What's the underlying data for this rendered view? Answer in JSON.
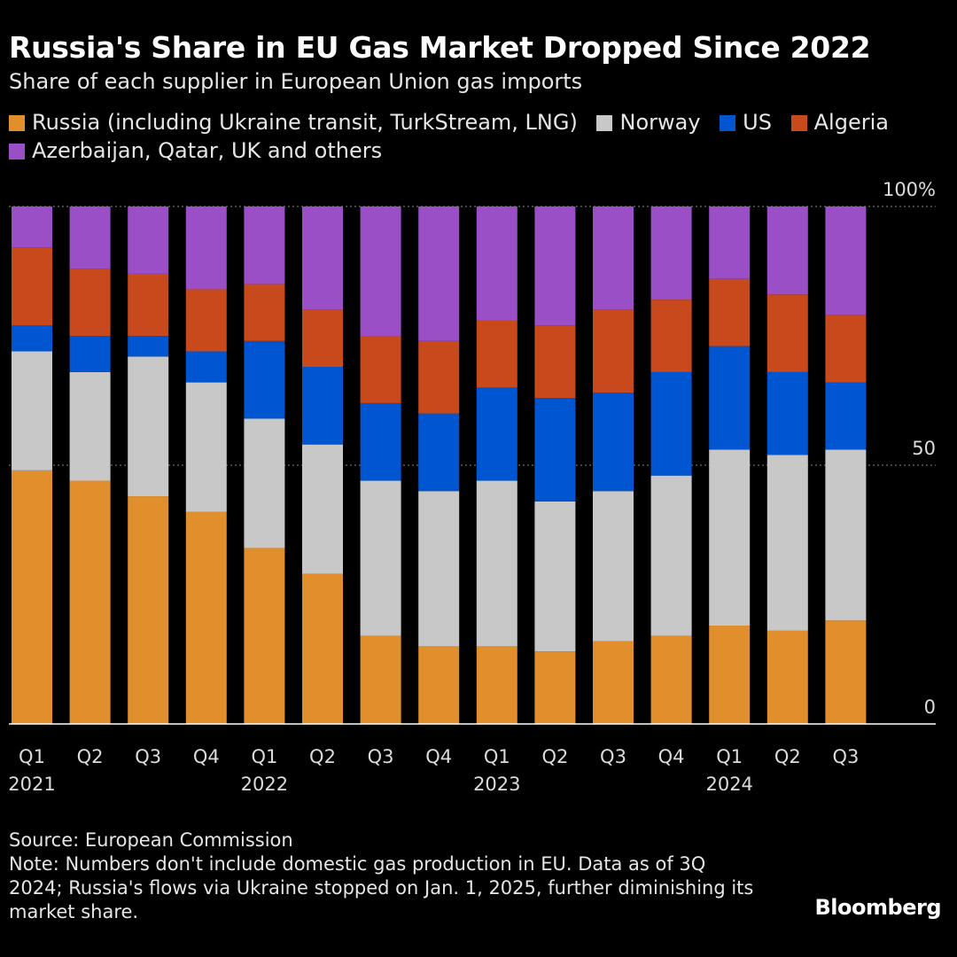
{
  "title": "Russia's Share in EU Gas Market Dropped Since 2022",
  "subtitle": "Share of each supplier in European Union gas imports",
  "legend": [
    {
      "label": "Russia (including Ukraine transit, TurkStream, LNG)",
      "color": "#e08f2c"
    },
    {
      "label": "Norway",
      "color": "#c8c8c8"
    },
    {
      "label": "US",
      "color": "#0055d0"
    },
    {
      "label": "Algeria",
      "color": "#c84a1c"
    },
    {
      "label": "Azerbaijan, Qatar, UK and others",
      "color": "#9a4fc7"
    }
  ],
  "source": "Source: European Commission",
  "note": "Note: Numbers don't include domestic gas production in EU. Data as of 3Q 2024; Russia's flows via Ukraine stopped on Jan. 1, 2025, further diminishing its market share.",
  "brand": "Bloomberg",
  "chart_data": {
    "type": "bar",
    "stacked": true,
    "ylim": [
      0,
      100
    ],
    "y_ticks": [
      {
        "value": 100,
        "label": "100%"
      },
      {
        "value": 50,
        "label": "50"
      },
      {
        "value": 0,
        "label": "0"
      }
    ],
    "grid": true,
    "categories": [
      "Q1",
      "Q2",
      "Q3",
      "Q4",
      "Q1",
      "Q2",
      "Q3",
      "Q4",
      "Q1",
      "Q2",
      "Q3",
      "Q4",
      "Q1",
      "Q2",
      "Q3"
    ],
    "years": [
      "2021",
      "",
      "",
      "",
      "2022",
      "",
      "",
      "",
      "2023",
      "",
      "",
      "",
      "2024",
      "",
      ""
    ],
    "series": [
      {
        "name": "Russia (including Ukraine transit, TurkStream, LNG)",
        "color": "#e08f2c",
        "values": [
          49,
          47,
          44,
          41,
          34,
          29,
          17,
          15,
          15,
          14,
          16,
          17,
          19,
          18,
          20
        ]
      },
      {
        "name": "Norway",
        "color": "#c8c8c8",
        "values": [
          23,
          21,
          27,
          25,
          25,
          25,
          30,
          30,
          32,
          29,
          29,
          31,
          34,
          34,
          33
        ]
      },
      {
        "name": "US",
        "color": "#0055d0",
        "values": [
          5,
          7,
          4,
          6,
          15,
          15,
          15,
          15,
          18,
          20,
          19,
          20,
          20,
          16,
          13
        ]
      },
      {
        "name": "Algeria",
        "color": "#c84a1c",
        "values": [
          15,
          13,
          12,
          12,
          11,
          11,
          13,
          14,
          13,
          14,
          16,
          14,
          13,
          15,
          13
        ]
      },
      {
        "name": "Azerbaijan, Qatar, UK and others",
        "color": "#9a4fc7",
        "values": [
          8,
          12,
          13,
          16,
          15,
          20,
          25,
          26,
          22,
          23,
          20,
          18,
          14,
          17,
          21
        ]
      }
    ]
  }
}
